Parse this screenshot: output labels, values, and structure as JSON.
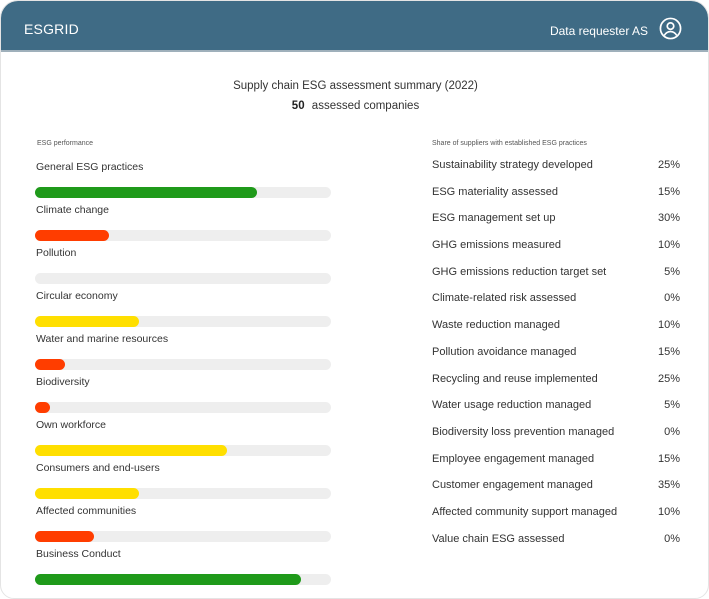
{
  "header": {
    "brand": "ESGRID",
    "user_name": "Data requester AS",
    "user_icon": "user-circle-icon",
    "background": "#3f6b85"
  },
  "summary": {
    "title": "Supply chain ESG assessment summary (2022)",
    "company_count": "50",
    "company_count_label": "assessed companies"
  },
  "performance": {
    "section_label": "ESG performance",
    "items": [
      {
        "label": "General ESG practices",
        "percent": 75,
        "color": "#1f9a1a"
      },
      {
        "label": "Climate change",
        "percent": 25,
        "color": "#ff3d00"
      },
      {
        "label": "Pollution",
        "percent": 0,
        "color": "#ff3d00"
      },
      {
        "label": "Circular economy",
        "percent": 35,
        "color": "#ffdf00"
      },
      {
        "label": "Water and marine resources",
        "percent": 10,
        "color": "#ff3d00"
      },
      {
        "label": "Biodiversity",
        "percent": 5,
        "color": "#ff3d00"
      },
      {
        "label": "Own workforce",
        "percent": 65,
        "color": "#ffdf00"
      },
      {
        "label": "Consumers and end-users",
        "percent": 35,
        "color": "#ffdf00"
      },
      {
        "label": "Affected communities",
        "percent": 20,
        "color": "#ff3d00"
      },
      {
        "label": "Business Conduct",
        "percent": 90,
        "color": "#1f9a1a"
      }
    ],
    "track_color": "#eeeeee"
  },
  "practices": {
    "section_label": "Share of suppliers with established ESG practices",
    "items": [
      {
        "label": "Sustainability strategy developed",
        "value": "25%"
      },
      {
        "label": "ESG materiality assessed",
        "value": "15%"
      },
      {
        "label": "ESG management set up",
        "value": "30%"
      },
      {
        "label": "GHG emissions measured",
        "value": "10%"
      },
      {
        "label": "GHG emissions reduction target set",
        "value": "5%"
      },
      {
        "label": "Climate-related risk assessed",
        "value": "0%"
      },
      {
        "label": "Waste reduction managed",
        "value": "10%"
      },
      {
        "label": "Pollution avoidance managed",
        "value": "15%"
      },
      {
        "label": "Recycling and reuse implemented",
        "value": "25%"
      },
      {
        "label": "Water usage reduction managed",
        "value": "5%"
      },
      {
        "label": "Biodiversity loss prevention managed",
        "value": "0%"
      },
      {
        "label": "Employee engagement managed",
        "value": "15%"
      },
      {
        "label": "Customer engagement managed",
        "value": "35%"
      },
      {
        "label": "Affected community support managed",
        "value": "10%"
      },
      {
        "label": "Value chain ESG assessed",
        "value": "0%"
      }
    ]
  }
}
